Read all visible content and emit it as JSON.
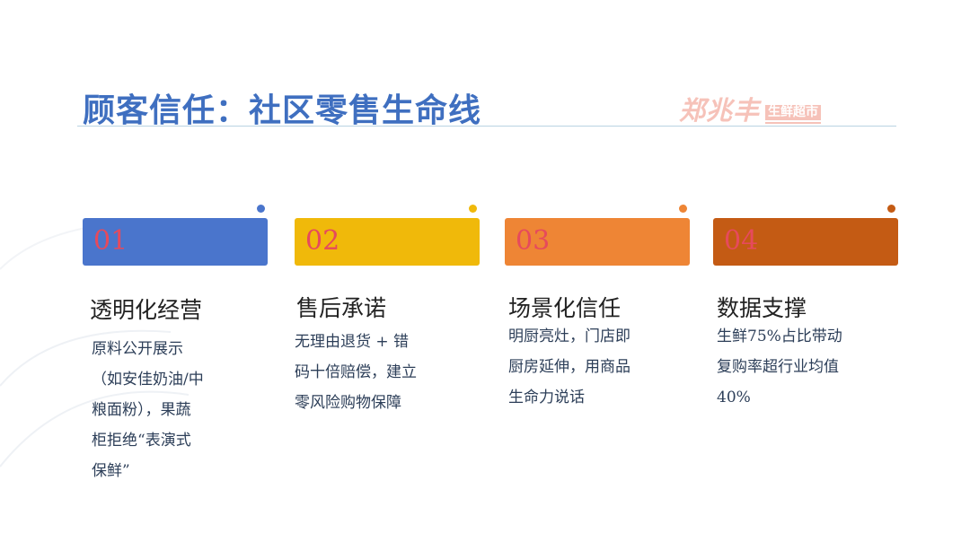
{
  "title": "顾客信任：社区零售生命线",
  "logo": {
    "main": "郑兆丰",
    "sub": "生鲜超市"
  },
  "cards": [
    {
      "number": "01",
      "heading": "透明化经营",
      "lines": [
        "原料公开展示",
        "（如安佳奶油/中",
        "粮面粉），果蔬",
        "柜拒绝“表演式",
        "保鲜”"
      ],
      "color": "#4a75cc",
      "dot_color": "#4a75cc"
    },
    {
      "number": "02",
      "heading": "售后承诺",
      "lines": [
        "无理由退货 + 错",
        "码十倍赔偿，建立",
        "零风险购物保障"
      ],
      "color": "#f0b90a",
      "dot_color": "#f0b90a"
    },
    {
      "number": "03",
      "heading": "场景化信任",
      "lines": [
        "明厨亮灶，门店即",
        "厨房延伸，用商品",
        "生命力说话"
      ],
      "color": "#ee8535",
      "dot_color": "#ee8535"
    },
    {
      "number": "04",
      "heading": "数据支撑",
      "lines": [
        "生鲜75%占比带动",
        "复购率超行业均值",
        "40%"
      ],
      "color": "#c45b14",
      "dot_color": "#c45b14"
    }
  ]
}
